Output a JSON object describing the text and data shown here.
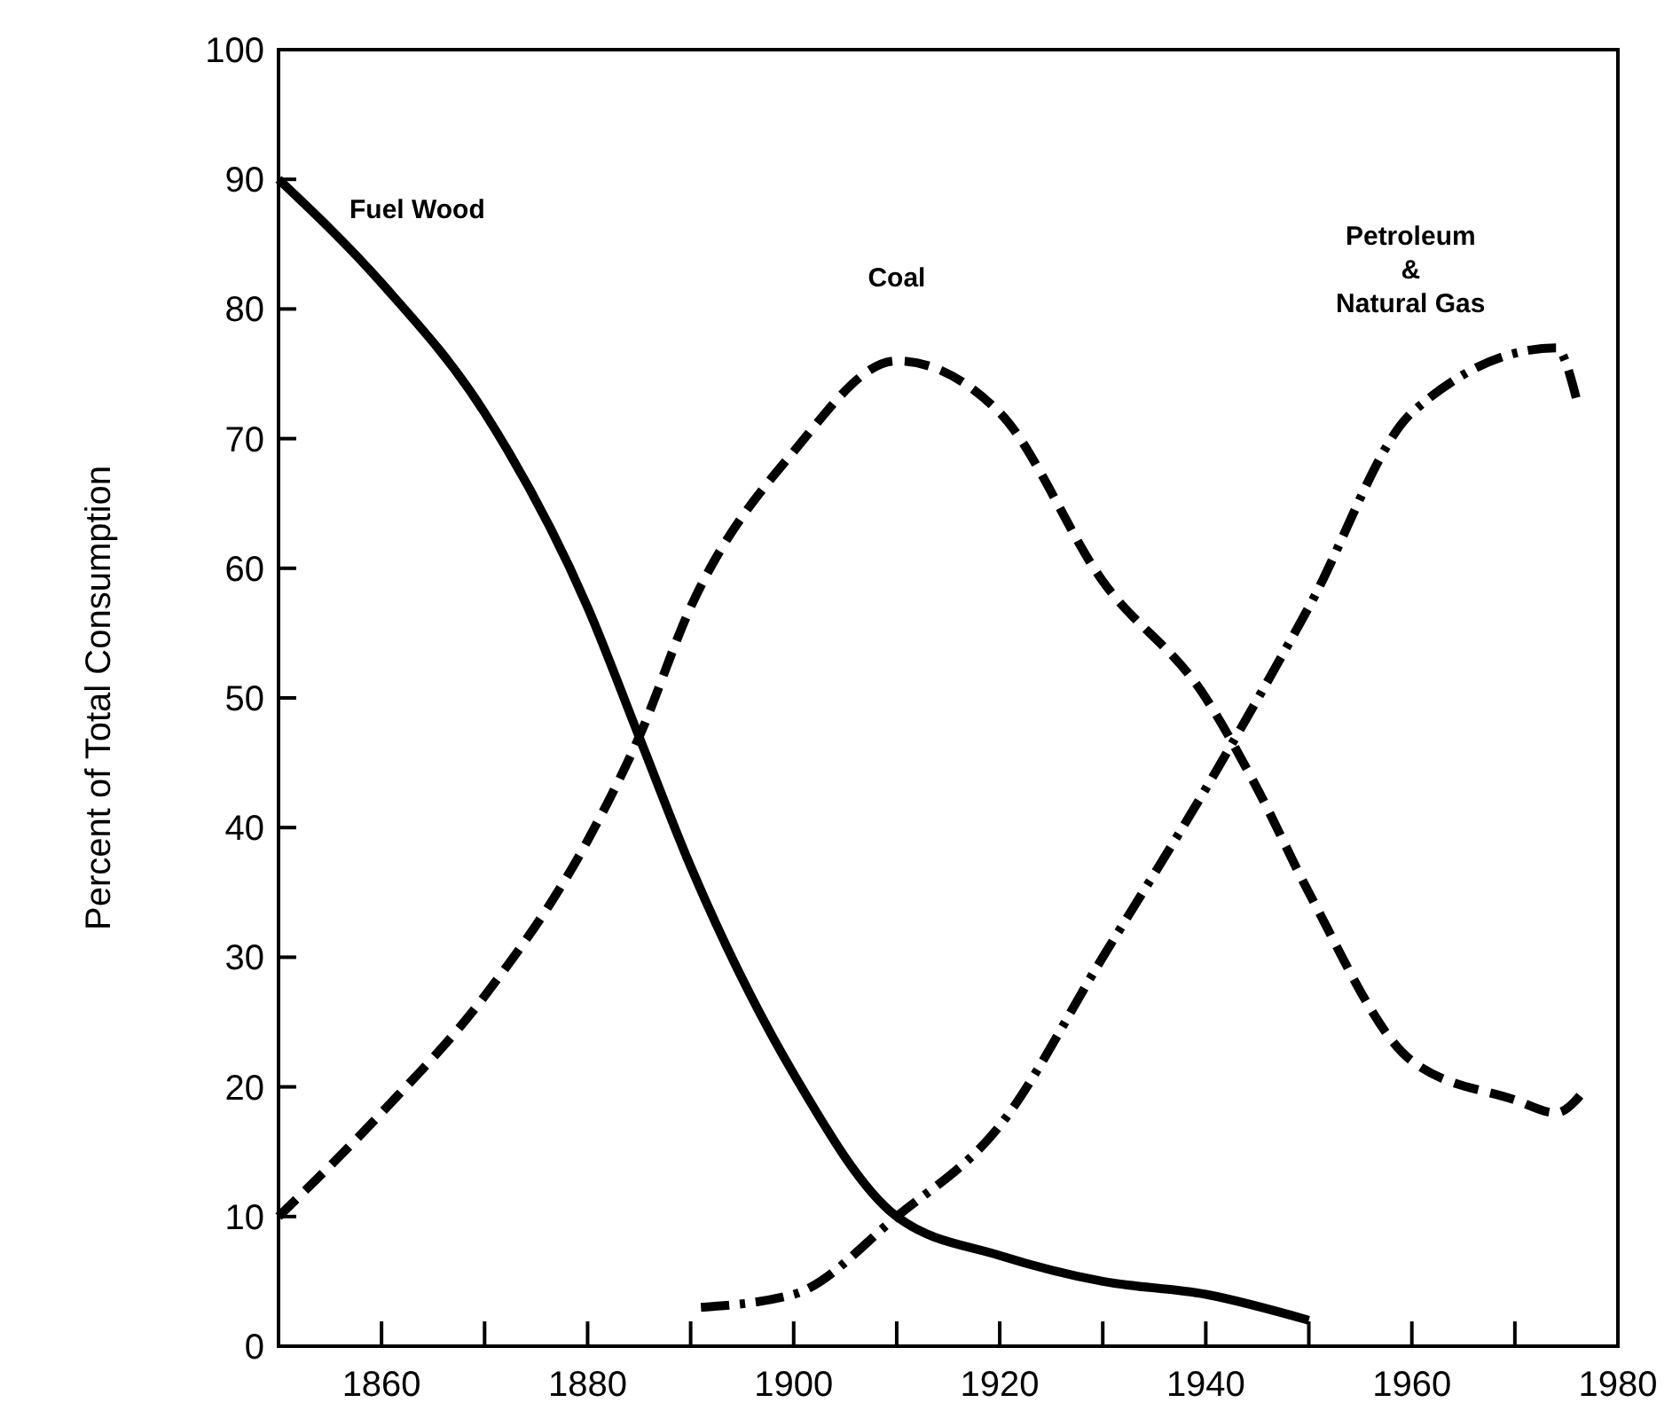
{
  "chart_data": {
    "type": "line",
    "ylabel": "Percent of Total Consumption",
    "xlim": [
      1850,
      1980
    ],
    "ylim": [
      0,
      100
    ],
    "xticks": [
      {
        "value": 1860,
        "label": "1860"
      },
      {
        "value": 1870,
        "label": null
      },
      {
        "value": 1880,
        "label": "1880"
      },
      {
        "value": 1890,
        "label": null
      },
      {
        "value": 1900,
        "label": "1900"
      },
      {
        "value": 1910,
        "label": null
      },
      {
        "value": 1920,
        "label": "1920"
      },
      {
        "value": 1930,
        "label": null
      },
      {
        "value": 1940,
        "label": "1940"
      },
      {
        "value": 1950,
        "label": null
      },
      {
        "value": 1960,
        "label": "1960"
      },
      {
        "value": 1970,
        "label": null
      },
      {
        "value": 1980,
        "label": "1980"
      }
    ],
    "yticks": [
      0,
      10,
      20,
      30,
      40,
      50,
      60,
      70,
      80,
      90,
      100
    ],
    "grid": false,
    "series": [
      {
        "name": "Fuel Wood",
        "color": "#000000",
        "line_style": "solid",
        "x": [
          1850,
          1860,
          1870,
          1880,
          1885,
          1890,
          1900,
          1910,
          1920,
          1930,
          1940,
          1950
        ],
        "values": [
          90,
          82,
          72,
          57,
          47,
          37,
          21,
          10,
          7,
          5,
          4,
          2
        ]
      },
      {
        "name": "Coal",
        "color": "#000000",
        "line_style": "dashed",
        "x": [
          1850,
          1860,
          1870,
          1880,
          1885,
          1890,
          1900,
          1910,
          1920,
          1930,
          1940,
          1945,
          1950,
          1960,
          1970,
          1974,
          1977
        ],
        "values": [
          10,
          18,
          27,
          39,
          47,
          57,
          69,
          76,
          72,
          59,
          50,
          43,
          35,
          22,
          19,
          18,
          20
        ]
      },
      {
        "name": "Petroleum & Natural Gas",
        "color": "#000000",
        "line_style": "dashdot",
        "x": [
          1891,
          1900,
          1910,
          1920,
          1930,
          1940,
          1950,
          1960,
          1974,
          1976
        ],
        "values": [
          3,
          4,
          10,
          17,
          30,
          43,
          57,
          72,
          77,
          73
        ]
      }
    ]
  }
}
